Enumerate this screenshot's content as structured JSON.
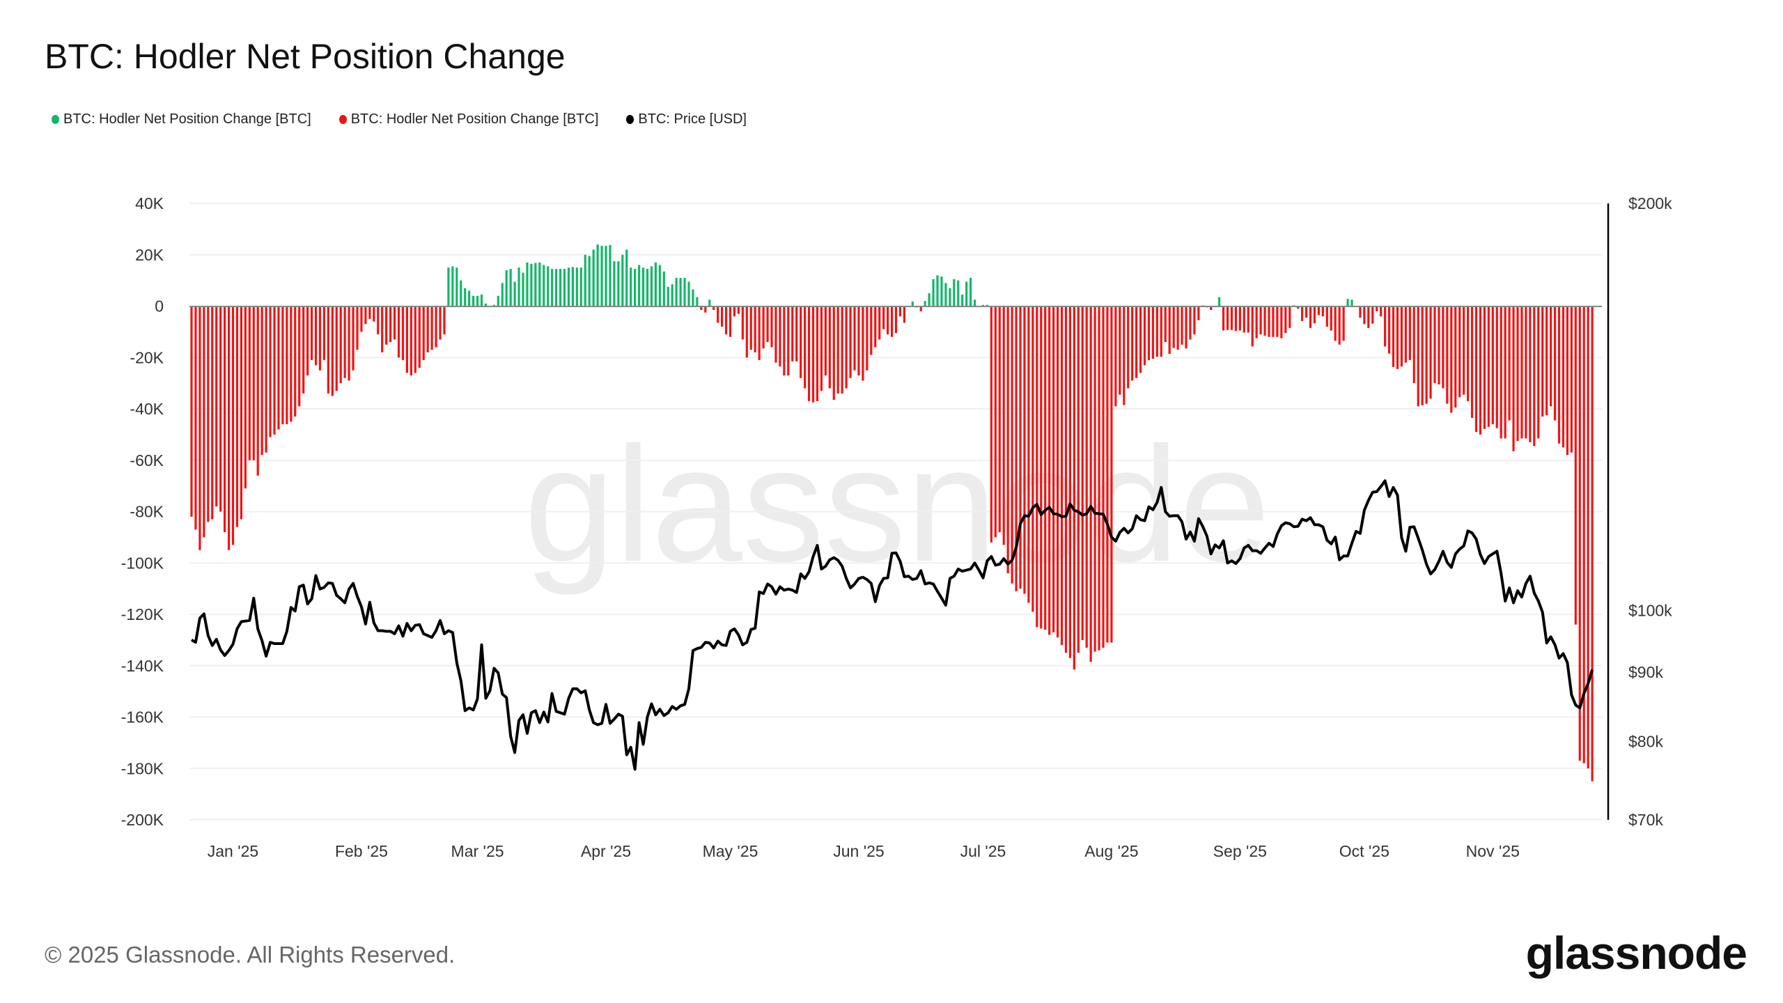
{
  "title": "BTC: Hodler Net Position Change",
  "legend": [
    {
      "label": "BTC: Hodler Net Position Change [BTC]",
      "color": "#12b76a"
    },
    {
      "label": "BTC: Hodler Net Position Change [BTC]",
      "color": "#f01414"
    },
    {
      "label": "BTC: Price [USD]",
      "color": "#000000"
    }
  ],
  "footer": "© 2025 Glassnode. All Rights Reserved.",
  "logo": "glassnode",
  "watermark": "glassnode",
  "chart_data": {
    "type": "bar+line",
    "title": "BTC: Hodler Net Position Change",
    "grid": true,
    "legend_position": "top-left",
    "left_axis": {
      "ylim": [
        -200000,
        40000
      ],
      "ticks": [
        {
          "value": 40000,
          "label": "40K"
        },
        {
          "value": 20000,
          "label": "20K"
        },
        {
          "value": 0,
          "label": "0"
        },
        {
          "value": -20000,
          "label": "-20K"
        },
        {
          "value": -40000,
          "label": "-40K"
        },
        {
          "value": -60000,
          "label": "-60K"
        },
        {
          "value": -80000,
          "label": "-80K"
        },
        {
          "value": -100000,
          "label": "-100K"
        },
        {
          "value": -120000,
          "label": "-120K"
        },
        {
          "value": -140000,
          "label": "-140K"
        },
        {
          "value": -160000,
          "label": "-160K"
        },
        {
          "value": -180000,
          "label": "-180K"
        },
        {
          "value": -200000,
          "label": "-200K"
        }
      ]
    },
    "right_axis": {
      "scale": "log",
      "ylim": [
        70000,
        200000
      ],
      "ticks": [
        {
          "value": 200000,
          "label": "$200k"
        },
        {
          "value": 100000,
          "label": "$100k"
        },
        {
          "value": 90000,
          "label": "$90k"
        },
        {
          "value": 80000,
          "label": "$80k"
        },
        {
          "value": 70000,
          "label": "$70k"
        }
      ]
    },
    "x_ticks": [
      {
        "date": "2025-01-01",
        "label": "Jan '25"
      },
      {
        "date": "2025-02-01",
        "label": "Feb '25"
      },
      {
        "date": "2025-03-01",
        "label": "Mar '25"
      },
      {
        "date": "2025-04-01",
        "label": "Apr '25"
      },
      {
        "date": "2025-05-01",
        "label": "May '25"
      },
      {
        "date": "2025-06-01",
        "label": "Jun '25"
      },
      {
        "date": "2025-07-01",
        "label": "Jul '25"
      },
      {
        "date": "2025-08-01",
        "label": "Aug '25"
      },
      {
        "date": "2025-09-01",
        "label": "Sep '25"
      },
      {
        "date": "2025-10-01",
        "label": "Oct '25"
      },
      {
        "date": "2025-11-01",
        "label": "Nov '25"
      }
    ],
    "colors": {
      "positive": "#12b76a",
      "negative": "#f01414",
      "price": "#000000"
    },
    "months": [
      {
        "month": "2024-12",
        "first_day": 22,
        "net_position_change_btc": [
          -82000,
          -87000,
          -95000,
          -90000,
          -84000,
          -83000,
          -78000,
          -80000,
          -88000,
          -95000
        ],
        "price_usd": [
          95100,
          94700,
          98700,
          99400,
          95800,
          94200,
          95200,
          93500,
          92600,
          93400
        ]
      },
      {
        "month": "2025-01",
        "first_day": 1,
        "net_position_change_btc": [
          -93000,
          -86000,
          -83000,
          -71000,
          -60000,
          -60000,
          -66000,
          -58000,
          -57000,
          -51000,
          -50000,
          -48000,
          -46000,
          -46000,
          -45000,
          -43000,
          -39000,
          -34000,
          -27000,
          -21000,
          -23000,
          -25000,
          -21000,
          -34000,
          -35000,
          -33000,
          -30000,
          -28000,
          -29000,
          -25000,
          -17000
        ],
        "price_usd": [
          94400,
          96900,
          98100,
          98200,
          98300,
          102100,
          96900,
          95000,
          92500,
          94700,
          94500,
          94500,
          94500,
          96500,
          100500,
          99900,
          104100,
          104400,
          101100,
          102000,
          106100,
          103700,
          104000,
          104800,
          104700,
          102600,
          102000,
          101300,
          103700,
          104700,
          102400
        ]
      },
      {
        "month": "2025-02",
        "first_day": 1,
        "net_position_change_btc": [
          -10000,
          -7000,
          -5000,
          -6000,
          -11000,
          -18000,
          -15000,
          -14000,
          -13000,
          -20000,
          -21000,
          -26000,
          -27000,
          -26000,
          -24000,
          -21000,
          -18000,
          -17000,
          -16000,
          -13000,
          -11000,
          15000,
          15500,
          15000,
          10000,
          7000,
          6000,
          4000
        ],
        "price_usd": [
          100600,
          97700,
          101400,
          97900,
          96600,
          96600,
          96500,
          96500,
          96100,
          97400,
          95700,
          97800,
          96600,
          97500,
          97600,
          96100,
          95800,
          95500,
          96600,
          98300,
          96100,
          96600,
          96300,
          91500,
          88700,
          84300,
          84700,
          84400
        ]
      },
      {
        "month": "2025-03",
        "first_day": 1,
        "net_position_change_btc": [
          4000,
          4500,
          1000,
          0,
          500,
          4000,
          9000,
          14000,
          14500,
          9500,
          15000,
          13000,
          17000,
          16500,
          16800,
          17000,
          16000,
          15500,
          14500,
          14500,
          14500,
          14500,
          15000,
          15200,
          15000,
          15000,
          20000,
          19500,
          22000,
          24000,
          23500
        ],
        "price_usd": [
          86000,
          94300,
          86100,
          87200,
          90600,
          89900,
          86700,
          86200,
          80700,
          78500,
          82900,
          83700,
          81100,
          84000,
          84300,
          82600,
          84100,
          82700,
          86800,
          84200,
          84000,
          83800,
          86100,
          87500,
          87500,
          86900,
          87200,
          84400,
          82600,
          82300,
          82500
        ]
      },
      {
        "month": "2025-04",
        "first_day": 1,
        "net_position_change_btc": [
          23500,
          23800,
          17500,
          17500,
          20000,
          22000,
          15000,
          14500,
          16000,
          15000,
          14500,
          15500,
          17000,
          16000,
          13500,
          7500,
          8500,
          11000,
          11000,
          11000,
          9500,
          6500,
          3500,
          -1500,
          -2500,
          2500,
          -1500,
          -6500,
          -8000,
          -11000
        ],
        "price_usd": [
          85200,
          82500,
          83100,
          83800,
          83500,
          78200,
          79200,
          76300,
          82600,
          79600,
          83400,
          85300,
          83700,
          84500,
          83600,
          84000,
          84900,
          84500,
          85000,
          85200,
          87500,
          93400,
          93700,
          93900,
          94700,
          94600,
          93800,
          94900,
          94300,
          94200
        ]
      },
      {
        "month": "2025-05",
        "first_day": 1,
        "net_position_change_btc": [
          -12000,
          -4000,
          -3000,
          -13000,
          -20000,
          -17000,
          -18000,
          -21000,
          -16500,
          -14000,
          -16000,
          -22000,
          -23500,
          -27000,
          -27000,
          -21500,
          -21500,
          -28000,
          -32000,
          -37000,
          -37500,
          -37000,
          -33000,
          -27000,
          -32000,
          -36500,
          -34000,
          -34000,
          -32000,
          -28000,
          -25000
        ],
        "price_usd": [
          96500,
          96900,
          95900,
          94300,
          94700,
          96800,
          97000,
          103200,
          102900,
          104600,
          104100,
          102800,
          104100,
          103500,
          103700,
          103500,
          103100,
          106400,
          105600,
          106800,
          109600,
          111700,
          107300,
          107800,
          109000,
          109400,
          108900,
          107800,
          105600,
          103900,
          104600
        ]
      },
      {
        "month": "2025-06",
        "first_day": 1,
        "net_position_change_btc": [
          -27000,
          -29000,
          -25000,
          -19000,
          -16000,
          -13000,
          -9000,
          -11000,
          -12000,
          -10500,
          -4000,
          -6500,
          0,
          1800,
          -500,
          -2000,
          2000,
          5000,
          10500,
          12000,
          11500,
          9000,
          7000,
          10500,
          10000,
          4500,
          9500,
          11000,
          2500,
          0
        ],
        "price_usd": [
          105600,
          105800,
          105400,
          104700,
          101500,
          104300,
          105600,
          105700,
          110200,
          110300,
          108700,
          105900,
          106000,
          105400,
          105600,
          107000,
          104600,
          104800,
          104600,
          103300,
          102100,
          100900,
          105600,
          106000,
          107300,
          106900,
          107100,
          107300,
          108400,
          107100
        ]
      },
      {
        "month": "2025-07",
        "first_day": 1,
        "net_position_change_btc": [
          500,
          500,
          -92000,
          -90000,
          -88000,
          -93000,
          -104000,
          -108000,
          -111000,
          -110000,
          -112000,
          -115500,
          -119000,
          -125000,
          -125500,
          -126000,
          -128000,
          -127000,
          -129000,
          -132000,
          -135000,
          -137000,
          -141500,
          -135000,
          -130000,
          -133000,
          -138500,
          -134500,
          -134000,
          -133000,
          -131000
        ],
        "price_usd": [
          105700,
          108800,
          109600,
          108000,
          108200,
          109200,
          108200,
          108900,
          111300,
          115900,
          117500,
          117400,
          119100,
          119800,
          117700,
          118600,
          119200,
          117900,
          117800,
          117300,
          117400,
          119900,
          118600,
          118300,
          117600,
          117900,
          119400,
          118000,
          117900,
          117800,
          115800
        ]
      },
      {
        "month": "2025-08",
        "first_day": 1,
        "net_position_change_btc": [
          -131000,
          -39000,
          -34500,
          -38500,
          -32000,
          -29000,
          -28000,
          -26000,
          -23000,
          -21000,
          -20500,
          -19700,
          -19700,
          -14000,
          -18600,
          -16300,
          -17000,
          -15000,
          -16500,
          -13000,
          -11000,
          -5500,
          300,
          -500,
          -1500,
          0,
          3500,
          -9500,
          -9300,
          -9300,
          -9700
        ],
        "price_usd": [
          113300,
          112500,
          114200,
          115000,
          114100,
          114900,
          117500,
          116700,
          116500,
          119300,
          118700,
          120200,
          123300,
          118300,
          117400,
          117500,
          117500,
          116300,
          112900,
          114300,
          112500,
          116900,
          115400,
          113500,
          110100,
          111800,
          111200,
          112600,
          108400,
          108800,
          108300
        ]
      },
      {
        "month": "2025-09",
        "first_day": 1,
        "net_position_change_btc": [
          -9500,
          -10300,
          -10300,
          -15700,
          -12500,
          -11000,
          -11500,
          -12000,
          -12000,
          -12000,
          -12500,
          -10500,
          -8500,
          300,
          -1000,
          -5800,
          -4500,
          -8500,
          -6700,
          -3500,
          -4000,
          -8000,
          -9500,
          -13500,
          -15000,
          -13500,
          2800,
          2500,
          0,
          -4500
        ],
        "price_usd": [
          109200,
          111200,
          111700,
          110700,
          110700,
          110200,
          111200,
          112100,
          111500,
          113900,
          115500,
          116100,
          115900,
          115300,
          115400,
          116800,
          116500,
          117100,
          115700,
          115700,
          115300,
          112700,
          112000,
          113300,
          109000,
          109700,
          109700,
          112100,
          114400,
          114000
        ]
      },
      {
        "month": "2025-10",
        "first_day": 1,
        "net_position_change_btc": [
          -7000,
          -8500,
          -6800,
          -2000,
          -4000,
          -15700,
          -18500,
          -23700,
          -24500,
          -23500,
          -22000,
          -21000,
          -30000,
          -39000,
          -38600,
          -38000,
          -36000,
          -30000,
          -30500,
          -32000,
          -38000,
          -41500,
          -39500,
          -35500,
          -34500,
          -37000,
          -43500,
          -49000,
          -50000,
          -47800,
          -47000
        ],
        "price_usd": [
          118600,
          120600,
          122300,
          122400,
          123500,
          124700,
          121400,
          123300,
          121700,
          113200,
          110600,
          115200,
          115300,
          113100,
          110800,
          108200,
          106400,
          107200,
          108700,
          110600,
          108500,
          107600,
          110100,
          111000,
          111600,
          114500,
          114100,
          112900,
          110000,
          108300,
          109600
        ]
      },
      {
        "month": "2025-11",
        "first_day": 1,
        "net_position_change_btc": [
          -46000,
          -47500,
          -51500,
          -51500,
          -44500,
          -56500,
          -52500,
          -51500,
          -51500,
          -53000,
          -54500,
          -51500,
          -43000,
          -42500,
          -39000,
          -44500,
          -53500,
          -55000,
          -58000,
          -57000,
          -124000,
          -177000,
          -178000,
          -180000,
          -185000
        ],
        "price_usd": [
          110100,
          110600,
          106500,
          101600,
          103900,
          101300,
          103400,
          102300,
          104700,
          106000,
          103000,
          101600,
          99700,
          94600,
          95600,
          94300,
          92200,
          92900,
          91500,
          86600,
          85100,
          84700,
          86800,
          88300,
          90400
        ]
      }
    ]
  }
}
